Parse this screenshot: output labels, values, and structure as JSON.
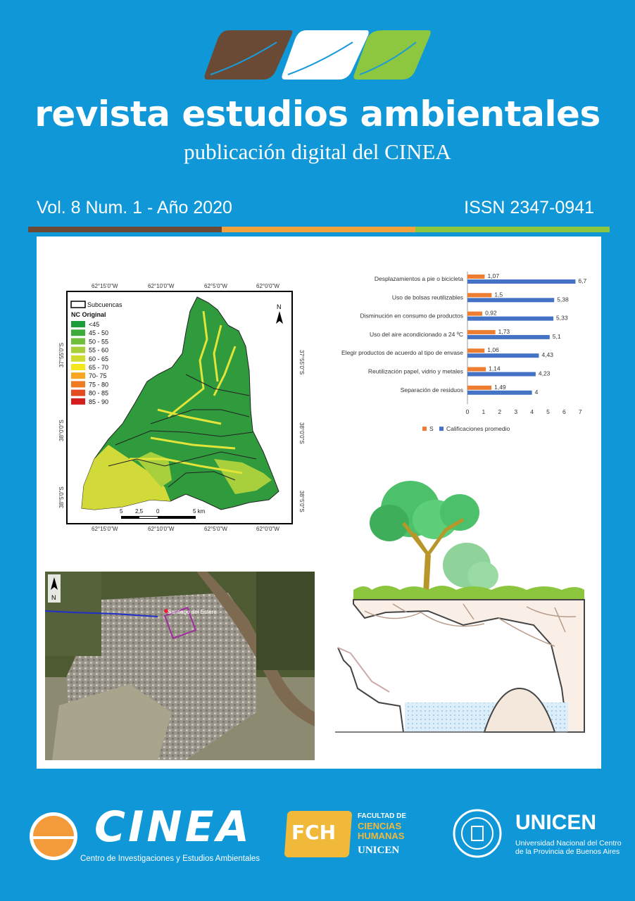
{
  "header": {
    "title": "revista estudios ambientales",
    "subtitle": "publicación  digital  del CINEA",
    "volume": "Vol. 8 Num. 1 - Año 2020",
    "issn": "ISSN 2347-0941"
  },
  "colors": {
    "background": "#0f97d8",
    "leaf_brown": "#6b4a35",
    "leaf_white": "#ffffff",
    "leaf_green": "#8dc63f",
    "stripe": [
      "#6b4a35",
      "#f2a23a",
      "#8dc63f"
    ]
  },
  "map": {
    "legend_subcuencas": "Subcuencas",
    "legend_title": "NC Original",
    "legend": [
      {
        "label": "<45",
        "color": "#1e9b3a"
      },
      {
        "label": "45 - 50",
        "color": "#3cab3c"
      },
      {
        "label": "50 - 55",
        "color": "#6fbf3c"
      },
      {
        "label": "55 - 60",
        "color": "#a6cf3a"
      },
      {
        "label": "60 - 65",
        "color": "#cfdc2e"
      },
      {
        "label": "65 - 70",
        "color": "#f5e81a"
      },
      {
        "label": "70- 75",
        "color": "#f6a623"
      },
      {
        "label": "75 - 80",
        "color": "#ee7b22"
      },
      {
        "label": "80 - 85",
        "color": "#e34b20"
      },
      {
        "label": "85 - 90",
        "color": "#d41e1e"
      }
    ],
    "lon_labels": [
      "62°15'0\"W",
      "62°10'0\"W",
      "62°5'0\"W",
      "62°0'0\"W"
    ],
    "lat_labels": [
      "37°55'0\"S",
      "38°0'0\"S",
      "38°5'0\"S"
    ],
    "north": "N",
    "scale": [
      "5",
      "2,5",
      "0",
      "5 km"
    ]
  },
  "chart_data": {
    "type": "bar",
    "orientation": "horizontal",
    "categories": [
      "Desplazamientos a pie o bicicleta",
      "Uso de bolsas reutilizables",
      "Disminución en consumo de productos",
      "Uso del aire acondicionado a 24 ºC",
      "Elegir productos de acuerdo al tipo de envase",
      "Reutilización papel, vidrio y metales",
      "Separación de residuos"
    ],
    "series": [
      {
        "name": "S",
        "color": "#ed7d31",
        "values": [
          1.07,
          1.5,
          0.92,
          1.73,
          1.06,
          1.14,
          1.49
        ],
        "labels": [
          "1,07",
          "1,5",
          "0,92",
          "1,73",
          "1,06",
          "1,14",
          "1,49"
        ]
      },
      {
        "name": "Calificaciones promedio",
        "color": "#4472c4",
        "values": [
          6.7,
          5.38,
          5.33,
          5.1,
          4.43,
          4.23,
          4
        ],
        "labels": [
          "6,7",
          "5,38",
          "5,33",
          "5,1",
          "4,43",
          "4,23",
          "4"
        ]
      }
    ],
    "xticks": [
      "0",
      "1",
      "2",
      "3",
      "4",
      "5",
      "6",
      "7"
    ],
    "xlim": [
      0,
      7
    ],
    "legend_position": "bottom"
  },
  "aerial": {
    "north": "N",
    "place_label": "Santiago del Estero"
  },
  "logos": {
    "cinea_name": "CINEA",
    "cinea_full": "Centro de Investigaciones y Estudios Ambientales",
    "fch_badge": "FCH",
    "fch_line1": "FACULTAD DE",
    "fch_line2": "CIENCIAS",
    "fch_line3": "HUMANAS",
    "fch_line4": "UNICEN",
    "unicen_name": "UNICEN",
    "unicen_full1": "Universidad Nacional del Centro",
    "unicen_full2": "de la Provincia de Buenos Aires"
  }
}
